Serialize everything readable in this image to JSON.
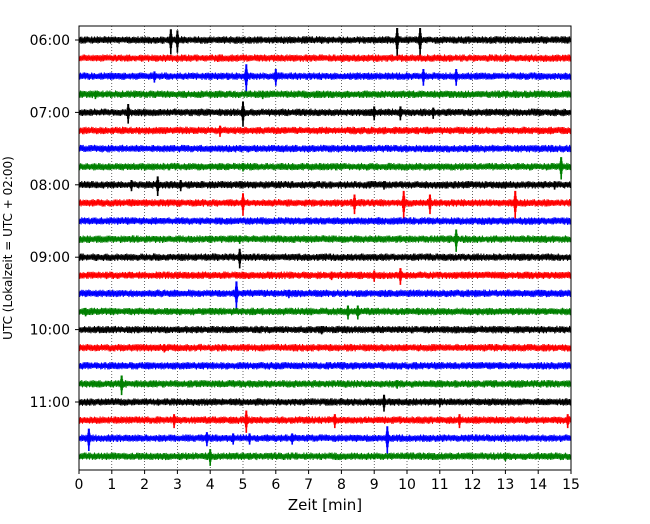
{
  "chart_data": {
    "type": "line",
    "xlabel": "Zeit  [min]",
    "ylabel": "UTC (Lokalzeit = UTC + 02:00)",
    "xlim": [
      0,
      15
    ],
    "xticks": [
      0,
      1,
      2,
      3,
      4,
      5,
      6,
      7,
      8,
      9,
      10,
      11,
      12,
      13,
      14,
      15
    ],
    "grid": "vertical-dotted",
    "trace_interval_minutes": 15,
    "trace_colors": [
      "#000000",
      "#ff0000",
      "#0000ff",
      "#008000"
    ],
    "traces": [
      {
        "start": "06:00",
        "color": "#000000",
        "events": [
          [
            2.8,
            0.9
          ],
          [
            3.0,
            0.8
          ],
          [
            9.7,
            1.0
          ],
          [
            10.4,
            1.0
          ]
        ]
      },
      {
        "start": "06:15",
        "color": "#ff0000",
        "events": []
      },
      {
        "start": "06:30",
        "color": "#0000ff",
        "events": [
          [
            2.3,
            0.4
          ],
          [
            5.1,
            1.0
          ],
          [
            6.0,
            0.6
          ],
          [
            10.5,
            0.6
          ],
          [
            11.5,
            0.6
          ]
        ]
      },
      {
        "start": "06:45",
        "color": "#008000",
        "events": [
          [
            0.5,
            0.3
          ],
          [
            5.6,
            0.3
          ]
        ]
      },
      {
        "start": "07:00",
        "color": "#000000",
        "events": [
          [
            1.5,
            0.7
          ],
          [
            5.0,
            0.9
          ],
          [
            9.0,
            0.5
          ],
          [
            9.8,
            0.5
          ],
          [
            10.8,
            0.4
          ]
        ]
      },
      {
        "start": "07:15",
        "color": "#ff0000",
        "events": [
          [
            4.3,
            0.4
          ]
        ]
      },
      {
        "start": "07:30",
        "color": "#0000ff",
        "events": []
      },
      {
        "start": "07:45",
        "color": "#008000",
        "events": [
          [
            14.7,
            0.8
          ],
          [
            5.0,
            0.3
          ]
        ]
      },
      {
        "start": "08:00",
        "color": "#000000",
        "events": [
          [
            1.6,
            0.4
          ],
          [
            2.4,
            0.7
          ],
          [
            3.1,
            0.4
          ],
          [
            9.3,
            0.3
          ],
          [
            14.5,
            0.3
          ]
        ]
      },
      {
        "start": "08:15",
        "color": "#ff0000",
        "events": [
          [
            5.0,
            0.8
          ],
          [
            8.4,
            0.7
          ],
          [
            9.9,
            1.0
          ],
          [
            10.7,
            0.7
          ],
          [
            13.3,
            1.0
          ]
        ]
      },
      {
        "start": "08:30",
        "color": "#0000ff",
        "events": []
      },
      {
        "start": "08:45",
        "color": "#008000",
        "events": [
          [
            11.5,
            0.8
          ],
          [
            4.9,
            0.3
          ]
        ]
      },
      {
        "start": "09:00",
        "color": "#000000",
        "events": [
          [
            4.9,
            0.7
          ]
        ]
      },
      {
        "start": "09:15",
        "color": "#ff0000",
        "events": [
          [
            7.7,
            0.3
          ],
          [
            9.0,
            0.4
          ],
          [
            9.8,
            0.6
          ]
        ]
      },
      {
        "start": "09:30",
        "color": "#0000ff",
        "events": [
          [
            4.8,
            1.0
          ],
          [
            6.4,
            0.3
          ]
        ]
      },
      {
        "start": "09:45",
        "color": "#008000",
        "events": [
          [
            0.2,
            0.3
          ],
          [
            8.2,
            0.5
          ],
          [
            8.5,
            0.5
          ]
        ]
      },
      {
        "start": "10:00",
        "color": "#000000",
        "events": [
          [
            7.4,
            0.3
          ]
        ]
      },
      {
        "start": "10:15",
        "color": "#ff0000",
        "events": [
          [
            2.6,
            0.3
          ]
        ]
      },
      {
        "start": "10:30",
        "color": "#0000ff",
        "events": []
      },
      {
        "start": "10:45",
        "color": "#008000",
        "events": [
          [
            1.3,
            0.7
          ],
          [
            9.7,
            0.3
          ]
        ]
      },
      {
        "start": "11:00",
        "color": "#000000",
        "events": [
          [
            9.3,
            0.6
          ],
          [
            11.0,
            0.3
          ]
        ]
      },
      {
        "start": "11:15",
        "color": "#ff0000",
        "events": [
          [
            2.9,
            0.5
          ],
          [
            5.1,
            0.8
          ],
          [
            7.8,
            0.5
          ],
          [
            11.6,
            0.5
          ],
          [
            14.9,
            0.5
          ]
        ]
      },
      {
        "start": "11:30",
        "color": "#0000ff",
        "events": [
          [
            0.3,
            0.8
          ],
          [
            3.9,
            0.5
          ],
          [
            4.7,
            0.4
          ],
          [
            5.2,
            0.4
          ],
          [
            6.5,
            0.4
          ],
          [
            9.4,
            1.0
          ]
        ]
      },
      {
        "start": "11:45",
        "color": "#008000",
        "events": [
          [
            4.0,
            0.6
          ],
          [
            13.0,
            0.3
          ]
        ]
      }
    ],
    "ytick_labels": [
      "06:00",
      "07:00",
      "08:00",
      "09:00",
      "10:00",
      "11:00"
    ],
    "ytick_trace_indices": [
      0,
      4,
      8,
      12,
      16,
      20
    ]
  }
}
